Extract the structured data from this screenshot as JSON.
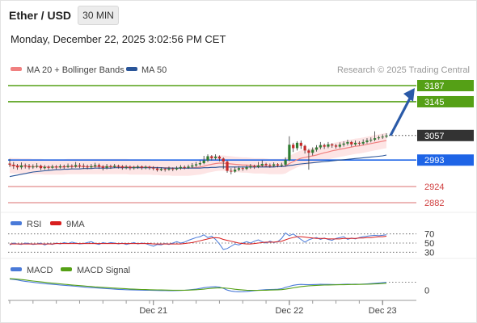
{
  "header": {
    "title": "Ether / USD",
    "timeframe": "30 MIN"
  },
  "timestamp": "Monday, December 22, 2025 3:02:56 PM CET",
  "legend": {
    "ma20": "MA 20 + Bollinger Bands",
    "ma50": "MA 50",
    "copyright": "Research © 2025 Trading Central",
    "rsi": "RSI",
    "rsi_ma": "9MA",
    "macd": "MACD",
    "macd_signal": "MACD Signal"
  },
  "colors": {
    "up": "#2e7d32",
    "down": "#c62828",
    "resistance": "#55a016",
    "pivot": "#1e64e6",
    "support": "#d04040",
    "ma20": "#f08080",
    "ma50": "#2a5599",
    "band": "#fde0e0",
    "arrow": "#2a5aa8",
    "rsi": "#4a7ad8",
    "rsi_ma": "#d81e1e",
    "macd": "#4a7ad8",
    "macd_signal": "#55a016",
    "price_tag": "#333333"
  },
  "chart_data": [
    {
      "type": "candlestick",
      "title": "Ether / USD",
      "timeframe": "30 MIN",
      "x_labels": [
        "Dec 21",
        "Dec 22",
        "Dec 23"
      ],
      "last_price": 3057,
      "levels": [
        {
          "label": "3187",
          "value": 3187,
          "kind": "resistance"
        },
        {
          "label": "3145",
          "value": 3145,
          "kind": "resistance"
        },
        {
          "label": "2993",
          "value": 2993,
          "kind": "pivot"
        },
        {
          "label": "2924",
          "value": 2924,
          "kind": "support"
        },
        {
          "label": "2882",
          "value": 2882,
          "kind": "support"
        }
      ],
      "target": 3187,
      "candles": [
        [
          2984,
          2981,
          2996,
          2975
        ],
        [
          2981,
          2978,
          2988,
          2970
        ],
        [
          2978,
          2974,
          2983,
          2968
        ],
        [
          2974,
          2979,
          2987,
          2969
        ],
        [
          2979,
          2977,
          2984,
          2971
        ],
        [
          2977,
          2974,
          2983,
          2969
        ],
        [
          2974,
          2976,
          2982,
          2970
        ],
        [
          2976,
          2978,
          2985,
          2972
        ],
        [
          2978,
          2972,
          2981,
          2967
        ],
        [
          2972,
          2975,
          2980,
          2968
        ],
        [
          2975,
          2973,
          2979,
          2968
        ],
        [
          2973,
          2976,
          2981,
          2970
        ],
        [
          2976,
          2974,
          2980,
          2969
        ],
        [
          2974,
          2977,
          2982,
          2971
        ],
        [
          2977,
          2975,
          2981,
          2970
        ],
        [
          2975,
          2978,
          2984,
          2972
        ],
        [
          2978,
          2976,
          2982,
          2971
        ],
        [
          2976,
          2980,
          2988,
          2973
        ],
        [
          2980,
          2978,
          2985,
          2972
        ],
        [
          2978,
          2976,
          2984,
          2970
        ],
        [
          2976,
          2974,
          2981,
          2969
        ],
        [
          2974,
          2977,
          2983,
          2971
        ],
        [
          2977,
          2980,
          2986,
          2973
        ],
        [
          2980,
          2976,
          2984,
          2970
        ],
        [
          2976,
          2973,
          2980,
          2966
        ],
        [
          2973,
          2977,
          2983,
          2969
        ],
        [
          2977,
          2975,
          2981,
          2970
        ],
        [
          2975,
          2978,
          2983,
          2972
        ],
        [
          2978,
          2976,
          2981,
          2971
        ],
        [
          2976,
          2973,
          2980,
          2968
        ],
        [
          2973,
          2975,
          2980,
          2969
        ],
        [
          2975,
          2972,
          2979,
          2967
        ],
        [
          2972,
          2974,
          2978,
          2968
        ],
        [
          2974,
          2976,
          2980,
          2970
        ],
        [
          2976,
          2973,
          2979,
          2968
        ],
        [
          2973,
          2975,
          2979,
          2969
        ],
        [
          2975,
          2973,
          2978,
          2968
        ],
        [
          2973,
          2971,
          2977,
          2966
        ],
        [
          2971,
          2967,
          2975,
          2963
        ],
        [
          2967,
          2970,
          2974,
          2964
        ],
        [
          2970,
          2968,
          2973,
          2963
        ],
        [
          2968,
          2971,
          2976,
          2965
        ],
        [
          2971,
          2969,
          2974,
          2964
        ],
        [
          2969,
          2972,
          2977,
          2966
        ],
        [
          2972,
          2975,
          2980,
          2968
        ],
        [
          2975,
          2973,
          2979,
          2969
        ],
        [
          2973,
          2976,
          2981,
          2970
        ],
        [
          2976,
          2979,
          2985,
          2972
        ],
        [
          2979,
          2982,
          2988,
          2975
        ],
        [
          2982,
          2985,
          2992,
          2978
        ],
        [
          2985,
          2992,
          3004,
          2982
        ],
        [
          2992,
          3003,
          3008,
          2988
        ],
        [
          3003,
          2998,
          3006,
          2992
        ],
        [
          2998,
          3002,
          3008,
          2994
        ],
        [
          3002,
          2997,
          3005,
          2990
        ],
        [
          2997,
          2989,
          3000,
          2970
        ],
        [
          2989,
          2965,
          2992,
          2960
        ],
        [
          2965,
          2963,
          2972,
          2956
        ],
        [
          2963,
          2968,
          2975,
          2960
        ],
        [
          2968,
          2972,
          2977,
          2964
        ],
        [
          2972,
          2970,
          2976,
          2965
        ],
        [
          2970,
          2974,
          2979,
          2967
        ],
        [
          2974,
          2977,
          2983,
          2970
        ],
        [
          2977,
          2975,
          2981,
          2970
        ],
        [
          2975,
          2979,
          2988,
          2972
        ],
        [
          2979,
          2983,
          2992,
          2975
        ],
        [
          2983,
          2980,
          2986,
          2975
        ],
        [
          2980,
          2978,
          2984,
          2973
        ],
        [
          2978,
          2982,
          2987,
          2975
        ],
        [
          2982,
          2979,
          2985,
          2974
        ],
        [
          2979,
          2981,
          2986,
          2975
        ],
        [
          2981,
          2993,
          3000,
          2976
        ],
        [
          2993,
          3033,
          3055,
          2990
        ],
        [
          3033,
          3024,
          3038,
          3014
        ],
        [
          3024,
          3038,
          3042,
          3018
        ],
        [
          3038,
          3030,
          3044,
          3022
        ],
        [
          3030,
          3018,
          3033,
          3010
        ],
        [
          3018,
          3012,
          3022,
          2968
        ],
        [
          3012,
          3020,
          3026,
          3005
        ],
        [
          3020,
          3026,
          3032,
          3015
        ],
        [
          3026,
          3032,
          3040,
          3021
        ],
        [
          3032,
          3028,
          3036,
          3022
        ],
        [
          3028,
          3034,
          3040,
          3024
        ],
        [
          3034,
          3031,
          3037,
          3025
        ],
        [
          3031,
          3028,
          3035,
          3023
        ],
        [
          3028,
          3033,
          3039,
          3024
        ],
        [
          3033,
          3036,
          3042,
          3028
        ],
        [
          3036,
          3040,
          3046,
          3031
        ],
        [
          3040,
          3034,
          3043,
          3028
        ],
        [
          3034,
          3038,
          3044,
          3030
        ],
        [
          3038,
          3036,
          3042,
          3031
        ],
        [
          3036,
          3040,
          3047,
          3032
        ],
        [
          3040,
          3044,
          3050,
          3036
        ],
        [
          3044,
          3046,
          3052,
          3039
        ],
        [
          3046,
          3050,
          3068,
          3042
        ],
        [
          3050,
          3052,
          3057,
          3046
        ],
        [
          3052,
          3054,
          3060,
          3048
        ],
        [
          3054,
          3057,
          3063,
          3050
        ]
      ],
      "ma20": [
        2979,
        2978,
        2978,
        2977,
        2977,
        2977,
        2976,
        2976,
        2976,
        2975,
        2975,
        2975,
        2975,
        2975,
        2975,
        2976,
        2976,
        2976,
        2976,
        2976,
        2976,
        2976,
        2976,
        2976,
        2976,
        2976,
        2976,
        2976,
        2976,
        2976,
        2976,
        2975,
        2975,
        2975,
        2975,
        2975,
        2975,
        2974,
        2974,
        2973,
        2973,
        2973,
        2972,
        2972,
        2972,
        2972,
        2972,
        2973,
        2974,
        2975,
        2977,
        2980,
        2982,
        2984,
        2985,
        2985,
        2984,
        2983,
        2982,
        2981,
        2980,
        2980,
        2979,
        2978,
        2978,
        2978,
        2977,
        2976,
        2976,
        2976,
        2976,
        2978,
        2984,
        2989,
        2994,
        2998,
        3000,
        3002,
        3004,
        3006,
        3009,
        3012,
        3014,
        3017,
        3019,
        3021,
        3023,
        3025,
        3027,
        3029,
        3030,
        3032,
        3034,
        3036,
        3038,
        3040,
        3042,
        3044
      ],
      "ma50": [
        2950,
        2952,
        2954,
        2956,
        2958,
        2960,
        2962,
        2963,
        2964,
        2965,
        2966,
        2967,
        2968,
        2968,
        2969,
        2969,
        2970,
        2970,
        2970,
        2971,
        2971,
        2971,
        2972,
        2972,
        2972,
        2972,
        2972,
        2973,
        2973,
        2973,
        2973,
        2973,
        2973,
        2973,
        2973,
        2973,
        2973,
        2973,
        2973,
        2973,
        2972,
        2972,
        2972,
        2972,
        2972,
        2972,
        2972,
        2972,
        2972,
        2972,
        2973,
        2973,
        2974,
        2974,
        2975,
        2975,
        2975,
        2975,
        2975,
        2975,
        2975,
        2975,
        2975,
        2975,
        2975,
        2975,
        2975,
        2975,
        2975,
        2976,
        2976,
        2977,
        2979,
        2980,
        2982,
        2983,
        2984,
        2985,
        2986,
        2987,
        2988,
        2989,
        2990,
        2991,
        2992,
        2993,
        2994,
        2995,
        2996,
        2997,
        2998,
        2999,
        3000,
        3001,
        3002,
        3003,
        3004,
        3006
      ],
      "bb_width": 20
    },
    {
      "type": "line",
      "title": "RSI",
      "levels": [
        70,
        50,
        30
      ],
      "ylim": [
        20,
        80
      ],
      "series": [
        {
          "name": "RSI",
          "values": [
            46,
            50,
            48,
            47,
            50,
            49,
            47,
            48,
            50,
            46,
            49,
            47,
            50,
            48,
            51,
            49,
            52,
            50,
            48,
            49,
            51,
            53,
            49,
            47,
            51,
            49,
            51,
            50,
            48,
            50,
            47,
            49,
            51,
            48,
            50,
            49,
            46,
            43,
            47,
            46,
            49,
            47,
            50,
            53,
            50,
            52,
            56,
            59,
            62,
            64,
            68,
            62,
            65,
            58,
            48,
            36,
            38,
            43,
            48,
            46,
            50,
            53,
            50,
            54,
            57,
            53,
            50,
            54,
            51,
            53,
            60,
            72,
            66,
            70,
            64,
            58,
            52,
            57,
            60,
            62,
            58,
            61,
            58,
            56,
            60,
            62,
            64,
            58,
            61,
            59,
            62,
            64,
            65,
            66,
            67,
            66,
            67,
            68
          ]
        },
        {
          "name": "9MA",
          "values": [
            48,
            48,
            48,
            48,
            48,
            48,
            48,
            48,
            48,
            48,
            48,
            48,
            49,
            49,
            49,
            49,
            49,
            49,
            49,
            49,
            49,
            49,
            49,
            49,
            49,
            49,
            49,
            49,
            49,
            49,
            49,
            49,
            49,
            49,
            49,
            49,
            49,
            48,
            48,
            48,
            48,
            48,
            48,
            48,
            48,
            49,
            50,
            51,
            53,
            55,
            57,
            59,
            61,
            62,
            61,
            58,
            56,
            54,
            52,
            50,
            49,
            48,
            48,
            49,
            50,
            51,
            52,
            52,
            52,
            53,
            54,
            57,
            60,
            62,
            64,
            64,
            63,
            62,
            61,
            60,
            60,
            60,
            59,
            59,
            59,
            59,
            60,
            60,
            60,
            60,
            61,
            61,
            62,
            62,
            63,
            64,
            64,
            65
          ]
        }
      ]
    },
    {
      "type": "line",
      "title": "MACD",
      "levels": [
        0
      ],
      "ylim": [
        -10,
        16
      ],
      "series": [
        {
          "name": "MACD",
          "values": [
            13.5,
            13.0,
            12.4,
            11.5,
            10.8,
            10.2,
            9.6,
            9.1,
            8.6,
            8.0,
            7.6,
            7.2,
            6.9,
            6.5,
            6.1,
            5.7,
            5.3,
            4.9,
            4.5,
            4.1,
            3.7,
            3.3,
            3.0,
            2.7,
            2.4,
            2.1,
            1.8,
            1.5,
            1.2,
            1.0,
            0.8,
            0.6,
            0.5,
            0.4,
            0.3,
            0.2,
            0.1,
            0.0,
            -0.1,
            -0.2,
            -0.2,
            -0.3,
            -0.3,
            -0.2,
            -0.1,
            0.1,
            0.5,
            1.0,
            1.6,
            2.3,
            3.2,
            3.8,
            4.2,
            4.3,
            4.0,
            2.5,
            0.4,
            -0.8,
            -1.4,
            -1.6,
            -1.5,
            -1.2,
            -0.8,
            -0.3,
            0.2,
            0.6,
            0.9,
            1.1,
            1.2,
            1.4,
            1.9,
            3.6,
            4.8,
            6.1,
            6.8,
            7.1,
            6.9,
            6.8,
            6.9,
            7.0,
            7.2,
            7.1,
            7.1,
            7.0,
            6.9,
            7.0,
            7.2,
            7.4,
            7.3,
            7.4,
            7.3,
            7.5,
            7.8,
            8.1,
            8.5,
            8.9,
            9.3,
            9.6
          ]
        },
        {
          "name": "MACD Signal",
          "values": [
            14.0,
            13.8,
            13.4,
            12.9,
            12.4,
            11.8,
            11.2,
            10.7,
            10.1,
            9.6,
            9.1,
            8.6,
            8.2,
            7.8,
            7.3,
            6.9,
            6.5,
            6.1,
            5.7,
            5.3,
            4.9,
            4.6,
            4.2,
            3.9,
            3.6,
            3.3,
            3.0,
            2.7,
            2.4,
            2.2,
            1.9,
            1.7,
            1.5,
            1.3,
            1.1,
            1.0,
            0.8,
            0.7,
            0.6,
            0.5,
            0.4,
            0.3,
            0.2,
            0.2,
            0.2,
            0.2,
            0.3,
            0.5,
            0.8,
            1.1,
            1.5,
            2.0,
            2.4,
            2.8,
            3.0,
            2.9,
            2.5,
            2.0,
            1.4,
            0.9,
            0.5,
            0.2,
            0.1,
            0.0,
            0.0,
            0.1,
            0.2,
            0.4,
            0.5,
            0.7,
            0.9,
            1.5,
            2.2,
            3.0,
            3.8,
            4.5,
            5.0,
            5.4,
            5.7,
            6.0,
            6.2,
            6.4,
            6.5,
            6.6,
            6.7,
            6.8,
            6.8,
            6.9,
            7.0,
            7.0,
            7.1,
            7.2,
            7.3,
            7.5,
            7.7,
            7.9,
            8.2,
            8.5
          ]
        }
      ]
    }
  ]
}
